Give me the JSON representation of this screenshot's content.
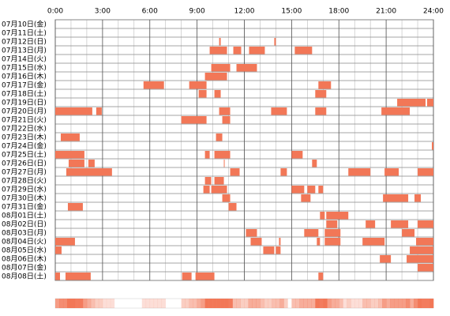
{
  "chart_data": {
    "type": "timeline",
    "color": "#f27757",
    "xlim": [
      0,
      24
    ],
    "xticks": [
      {
        "value": 0,
        "label": "0:00"
      },
      {
        "value": 3,
        "label": "3:00"
      },
      {
        "value": 6,
        "label": "6:00"
      },
      {
        "value": 9,
        "label": "9:00"
      },
      {
        "value": 12,
        "label": "12:00"
      },
      {
        "value": 15,
        "label": "15:00"
      },
      {
        "value": 18,
        "label": "18:00"
      },
      {
        "value": 21,
        "label": "21:00"
      },
      {
        "value": 24,
        "label": "24:00"
      }
    ],
    "rows": [
      {
        "label": "07月10日(金)",
        "segments": []
      },
      {
        "label": "07月11日(土)",
        "segments": []
      },
      {
        "label": "07月12日(日)",
        "segments": [
          [
            10.4,
            10.5
          ],
          [
            13.9,
            14.0
          ]
        ]
      },
      {
        "label": "07月13日(月)",
        "segments": [
          [
            9.8,
            10.9
          ],
          [
            11.3,
            11.8
          ],
          [
            12.3,
            13.3
          ],
          [
            15.2,
            16.3
          ]
        ]
      },
      {
        "label": "07月14日(火)",
        "segments": []
      },
      {
        "label": "07月15日(水)",
        "segments": [
          [
            9.9,
            11.1
          ],
          [
            11.5,
            12.8
          ]
        ]
      },
      {
        "label": "07月16日(木)",
        "segments": [
          [
            9.5,
            10.9
          ]
        ]
      },
      {
        "label": "07月17日(金)",
        "segments": [
          [
            5.6,
            6.9
          ],
          [
            8.5,
            9.6
          ],
          [
            16.7,
            17.5
          ]
        ]
      },
      {
        "label": "07月18日(土)",
        "segments": [
          [
            9.1,
            9.6
          ],
          [
            10.1,
            10.5
          ],
          [
            16.5,
            17.2
          ]
        ]
      },
      {
        "label": "07月19日(日)",
        "segments": [
          [
            21.7,
            23.5
          ],
          [
            23.6,
            24
          ]
        ]
      },
      {
        "label": "07月20日(月)",
        "segments": [
          [
            0,
            2.35
          ],
          [
            2.6,
            2.95
          ],
          [
            10.4,
            11.1
          ],
          [
            13.7,
            14.7
          ],
          [
            16.5,
            17.2
          ],
          [
            20.7,
            22.5
          ]
        ]
      },
      {
        "label": "07月21日(火)",
        "segments": [
          [
            8.0,
            9.6
          ],
          [
            10.6,
            11.1
          ]
        ]
      },
      {
        "label": "07月22日(水)",
        "segments": []
      },
      {
        "label": "07月23日(木)",
        "segments": [
          [
            0.35,
            1.55
          ],
          [
            10.2,
            10.6
          ]
        ]
      },
      {
        "label": "07月24日(金)",
        "segments": [
          [
            23.9,
            24
          ]
        ]
      },
      {
        "label": "07月25日(土)",
        "segments": [
          [
            0,
            1.85
          ],
          [
            9.5,
            9.8
          ],
          [
            10.1,
            11.1
          ],
          [
            15.0,
            15.7
          ]
        ]
      },
      {
        "label": "07月26日(日)",
        "segments": [
          [
            0.85,
            1.85
          ],
          [
            2.1,
            2.5
          ],
          [
            10.7,
            10.75
          ],
          [
            16.3,
            16.6
          ]
        ]
      },
      {
        "label": "07月27日(月)",
        "segments": [
          [
            0.7,
            3.6
          ],
          [
            11.1,
            11.7
          ],
          [
            14.3,
            14.7
          ],
          [
            18.6,
            20.0
          ],
          [
            20.9,
            21.8
          ],
          [
            23.0,
            24
          ]
        ]
      },
      {
        "label": "07月28日(火)",
        "segments": [
          [
            9.5,
            9.9
          ],
          [
            10.1,
            10.7
          ]
        ]
      },
      {
        "label": "07月29日(水)",
        "segments": [
          [
            9.4,
            9.8
          ],
          [
            9.9,
            10.9
          ],
          [
            15.0,
            15.8
          ],
          [
            16.0,
            16.5
          ],
          [
            16.7,
            17.0
          ]
        ]
      },
      {
        "label": "07月30日(木)",
        "segments": [
          [
            10.6,
            11.1
          ],
          [
            15.6,
            16.2
          ],
          [
            20.8,
            22.4
          ],
          [
            22.8,
            23.2
          ]
        ]
      },
      {
        "label": "07月31日(金)",
        "segments": [
          [
            0.8,
            1.75
          ],
          [
            11.0,
            11.5
          ]
        ]
      },
      {
        "label": "08月01日(土)",
        "segments": [
          [
            16.8,
            17.1
          ],
          [
            17.2,
            18.6
          ]
        ]
      },
      {
        "label": "08月02日(日)",
        "segments": [
          [
            17.2,
            17.9
          ],
          [
            19.7,
            20.3
          ],
          [
            21.3,
            22.4
          ],
          [
            23.0,
            24
          ]
        ]
      },
      {
        "label": "08月03日(月)",
        "segments": [
          [
            12.1,
            12.8
          ],
          [
            15.8,
            16.7
          ],
          [
            17.1,
            18.1
          ],
          [
            22.0,
            22.8
          ]
        ]
      },
      {
        "label": "08月04日(火)",
        "segments": [
          [
            0,
            1.25
          ],
          [
            12.4,
            13.1
          ],
          [
            14.2,
            14.3
          ],
          [
            16.6,
            16.8
          ],
          [
            17.1,
            18.1
          ],
          [
            19.5,
            20.9
          ],
          [
            22.9,
            24
          ]
        ]
      },
      {
        "label": "08月05日(水)",
        "segments": [
          [
            0,
            0.4
          ],
          [
            13.2,
            13.9
          ],
          [
            14.0,
            14.3
          ],
          [
            22.5,
            24
          ]
        ]
      },
      {
        "label": "08月06日(木)",
        "segments": [
          [
            20.6,
            21.3
          ],
          [
            22.3,
            24
          ]
        ]
      },
      {
        "label": "08月07日(金)",
        "segments": [
          [
            23.0,
            24
          ]
        ]
      },
      {
        "label": "08月08日(土)",
        "segments": [
          [
            0,
            0.3
          ],
          [
            0.65,
            2.25
          ],
          [
            8.05,
            8.65
          ],
          [
            8.9,
            10.1
          ],
          [
            16.7,
            17.0
          ]
        ]
      }
    ]
  }
}
